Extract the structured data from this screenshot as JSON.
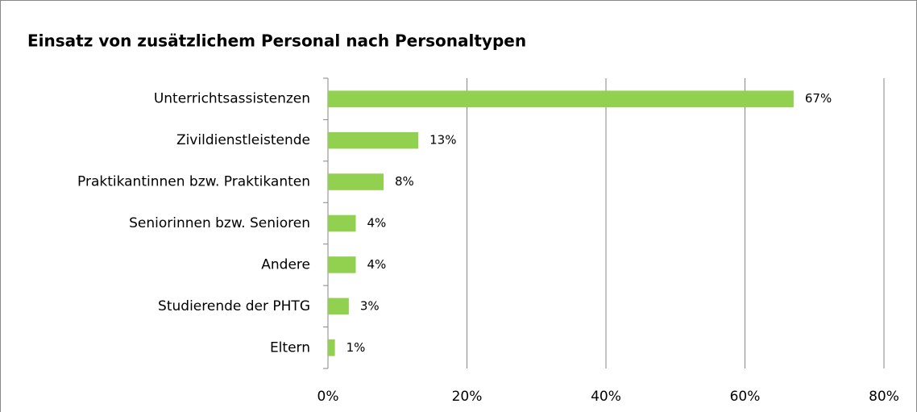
{
  "chart_data": {
    "type": "bar",
    "orientation": "horizontal",
    "title": "Einsatz von zusätzlichem Personal nach Personaltypen",
    "categories": [
      "Unterrichtsassistenzen",
      "Zivildienstleistende",
      "Praktikantinnen bzw. Praktikanten",
      "Seniorinnen bzw. Senioren",
      "Andere",
      "Studierende der PHTG",
      "Eltern"
    ],
    "values": [
      67,
      13,
      8,
      4,
      4,
      3,
      1
    ],
    "value_labels": [
      "67%",
      "13%",
      "8%",
      "4%",
      "4%",
      "3%",
      "1%"
    ],
    "color": "#92d050",
    "xlim": [
      0,
      80
    ],
    "xticks": [
      {
        "value": 0,
        "label": "0%"
      },
      {
        "value": 20,
        "label": "20%"
      },
      {
        "value": 40,
        "label": "40%"
      },
      {
        "value": 60,
        "label": "60%"
      },
      {
        "value": 80,
        "label": "80%"
      }
    ],
    "grid": true
  }
}
